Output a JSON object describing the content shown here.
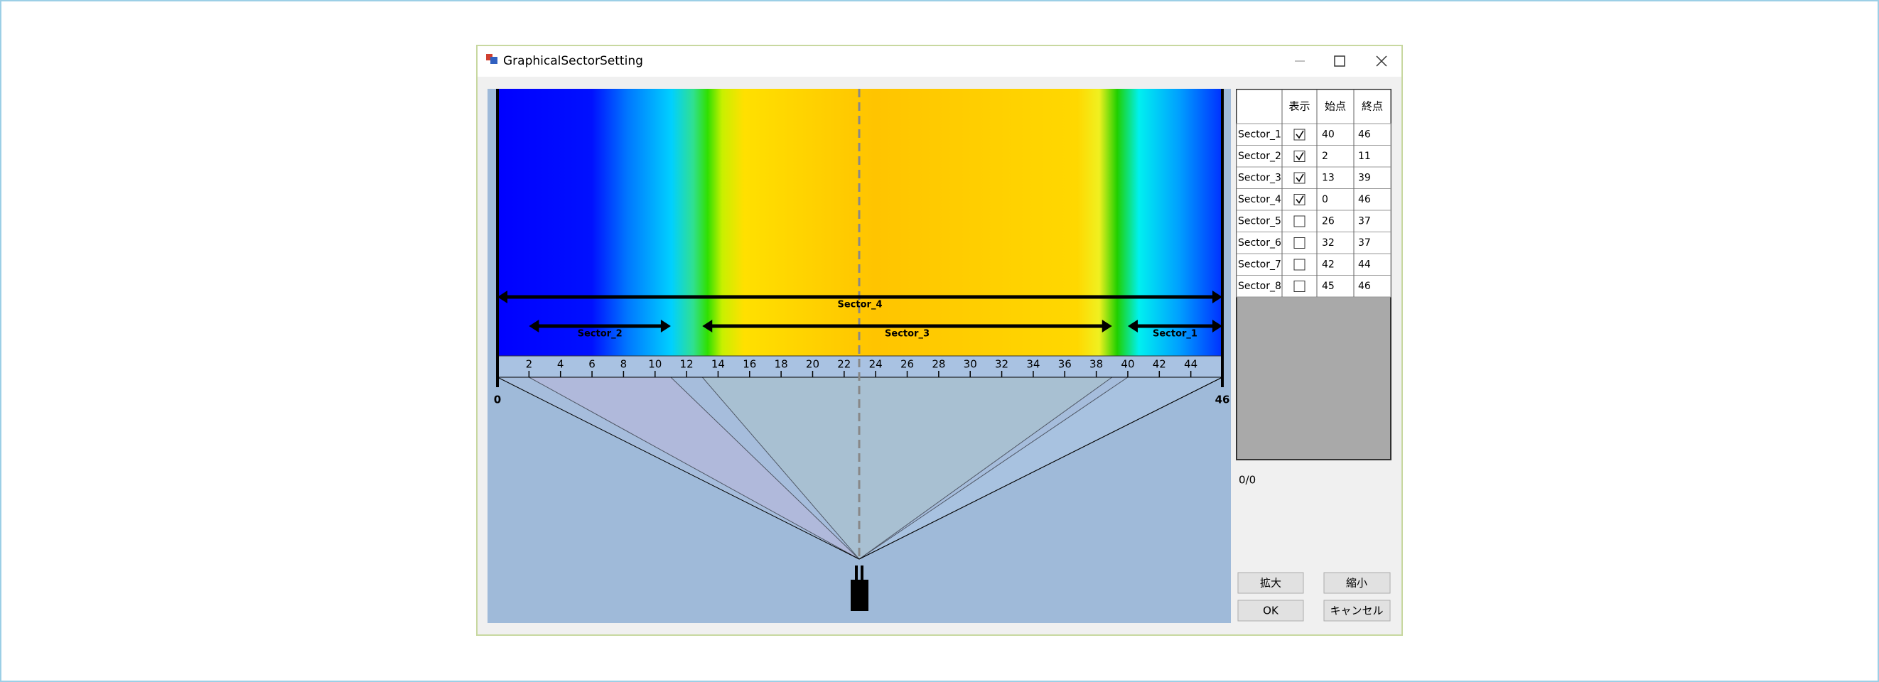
{
  "window": {
    "title": "GraphicalSectorSetting"
  },
  "sector_view": {
    "axis_min": 0,
    "axis_max": 46,
    "ticks": [
      2,
      4,
      6,
      8,
      10,
      12,
      14,
      16,
      18,
      20,
      22,
      24,
      26,
      28,
      30,
      32,
      34,
      36,
      38,
      40,
      42,
      44
    ]
  },
  "table": {
    "headers": [
      "表示",
      "始点",
      "終点"
    ],
    "rows": [
      {
        "name": "Sector_1",
        "visible": true,
        "start": 40,
        "end": 46
      },
      {
        "name": "Sector_2",
        "visible": true,
        "start": 2,
        "end": 11
      },
      {
        "name": "Sector_3",
        "visible": true,
        "start": 13,
        "end": 39
      },
      {
        "name": "Sector_4",
        "visible": true,
        "start": 0,
        "end": 46
      },
      {
        "name": "Sector_5",
        "visible": false,
        "start": 26,
        "end": 37
      },
      {
        "name": "Sector_6",
        "visible": false,
        "start": 32,
        "end": 37
      },
      {
        "name": "Sector_7",
        "visible": false,
        "start": 42,
        "end": 44
      },
      {
        "name": "Sector_8",
        "visible": false,
        "start": 45,
        "end": 46
      }
    ]
  },
  "status": "0/0",
  "buttons": {
    "zoom_in": "拡大",
    "zoom_out": "縮小",
    "ok": "OK",
    "cancel": "キャンセル"
  }
}
